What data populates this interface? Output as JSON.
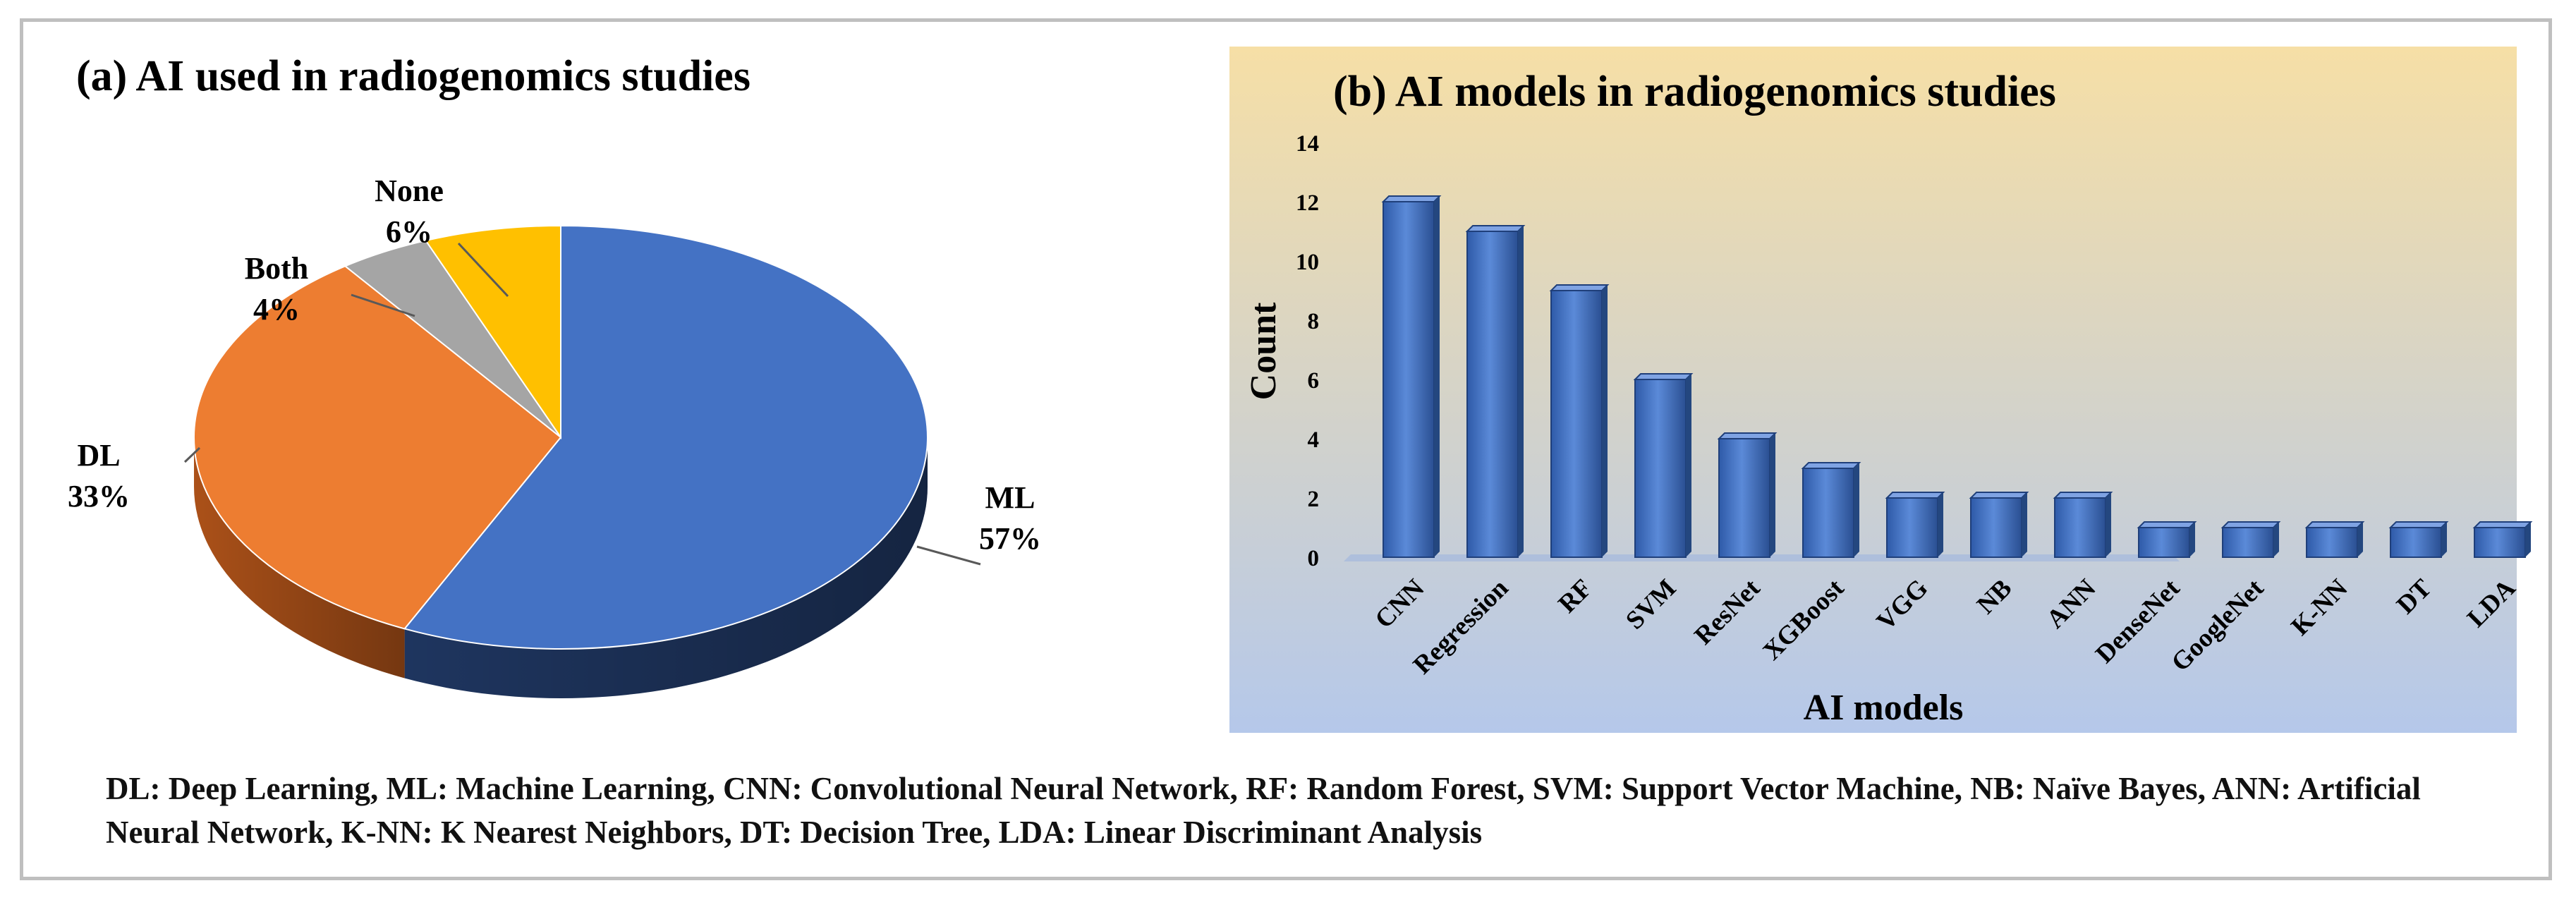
{
  "chart_data": [
    {
      "type": "pie",
      "title": "(a)   AI used in radiogenomics studies",
      "slices": [
        {
          "name": "ML",
          "pct_label": "57%",
          "value": 57,
          "color": "#4472C4",
          "side": "#203864"
        },
        {
          "name": "DL",
          "pct_label": "33%",
          "value": 33,
          "color": "#ED7D31",
          "side": "#B4551A"
        },
        {
          "name": "Both",
          "pct_label": "4%",
          "value": 4,
          "color": "#A5A5A5",
          "side": "#6E6E6E"
        },
        {
          "name": "None",
          "pct_label": "6%",
          "value": 6,
          "color": "#FFC000",
          "side": "#BF9000"
        }
      ]
    },
    {
      "type": "bar",
      "title": "(b)     AI models in radiogenomics studies",
      "xlabel": "AI models",
      "ylabel": "Count",
      "ylim": [
        0,
        14
      ],
      "yticks": [
        0,
        2,
        4,
        6,
        8,
        10,
        12,
        14
      ],
      "categories": [
        "CNN",
        "Regression",
        "RF",
        "SVM",
        "ResNet",
        "XGBoost",
        "VGG",
        "NB",
        "ANN",
        "DenseNet",
        "GoogleNet",
        "K-NN",
        "DT",
        "LDA"
      ],
      "values": [
        12,
        11,
        9,
        6,
        4,
        3,
        2,
        2,
        2,
        1,
        1,
        1,
        1,
        1
      ],
      "bar_color": "#4472C4",
      "background_top": "#F6DFA6",
      "background_bottom": "#B5C8EA"
    }
  ],
  "caption": "DL: Deep Learning, ML: Machine Learning, CNN: Convolutional Neural Network, RF: Random Forest, SVM: Support Vector Machine, NB: Naïve Bayes, ANN: Artificial Neural Network, K-NN: K Nearest Neighbors, DT: Decision Tree, LDA: Linear Discriminant Analysis"
}
